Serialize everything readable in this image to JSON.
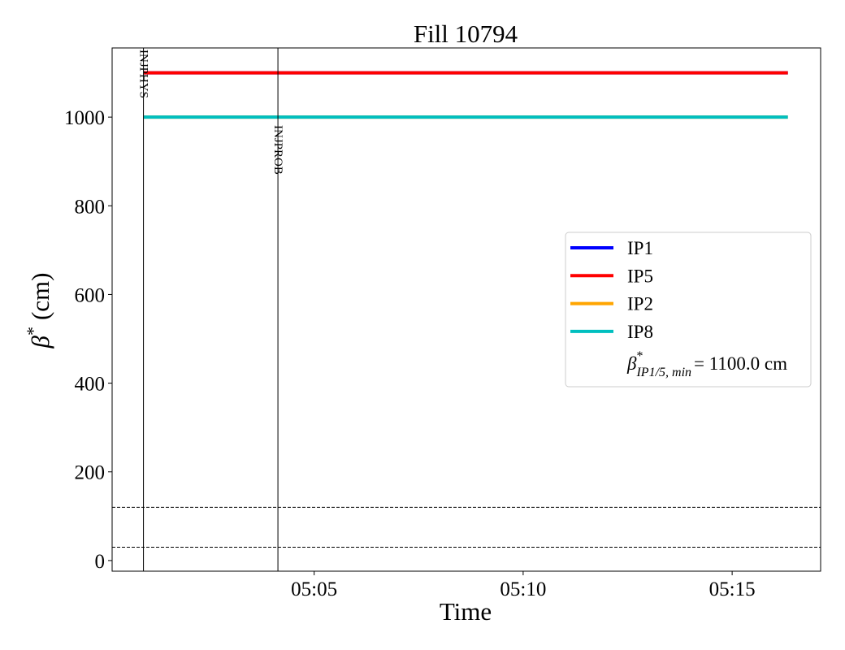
{
  "chart_data": {
    "type": "line",
    "title": "Fill 10794",
    "xlabel": "Time",
    "ylabel": {
      "symbol": "β",
      "sup": "*",
      "unit": "(cm)"
    },
    "x": [
      "05:00:55",
      "05:16:20"
    ],
    "xlim": [
      "05:00:10",
      "05:17:07"
    ],
    "xticks": [
      {
        "value": "05:05:00",
        "label": "05:05"
      },
      {
        "value": "05:10:00",
        "label": "05:10"
      },
      {
        "value": "05:15:00",
        "label": "05:15"
      }
    ],
    "ylim": [
      -24,
      1156
    ],
    "yticks": [
      0,
      200,
      400,
      600,
      800,
      1000
    ],
    "series": [
      {
        "name": "IP1",
        "color": "#0000ff",
        "values": [
          1100,
          1100
        ]
      },
      {
        "name": "IP5",
        "color": "#ff0000",
        "values": [
          1100,
          1100
        ]
      },
      {
        "name": "IP2",
        "color": "#ffa500",
        "values": [
          1000,
          1000
        ]
      },
      {
        "name": "IP8",
        "color": "#00bfbf",
        "values": [
          1000,
          1000
        ]
      }
    ],
    "events": [
      {
        "label": "INJPHYS",
        "x": "05:00:55"
      },
      {
        "label": "INJPROB",
        "x": "05:04:08"
      }
    ],
    "hlines": [
      120,
      30
    ],
    "legend_note": {
      "symbol": "β",
      "sup": "*",
      "sub": "IP1/5, min",
      "text": "= 1100.0 cm"
    },
    "legend": "center right"
  }
}
